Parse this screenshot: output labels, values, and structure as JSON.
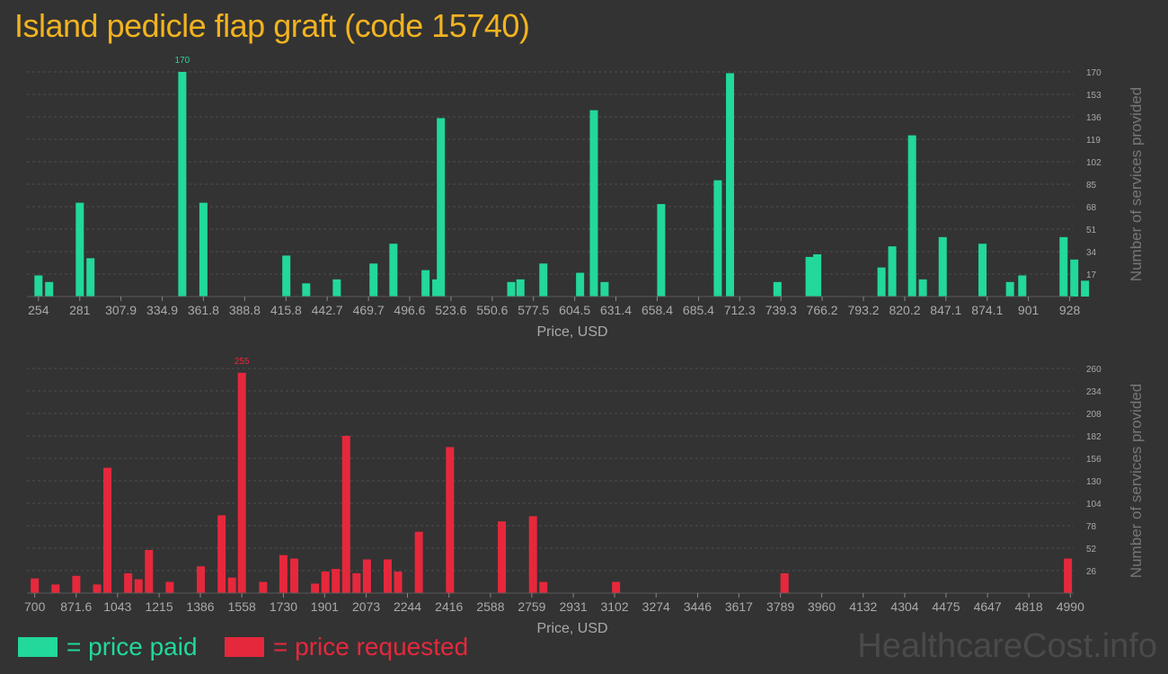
{
  "title": "Island pedicle flap graft (code 15740)",
  "colors": {
    "paid": "#22d89a",
    "requested": "#e6283c",
    "title": "#f2b320"
  },
  "legend": {
    "paid": "= price paid",
    "requested": "= price requested"
  },
  "watermark": "HealthcareCost.info",
  "chart_data": [
    {
      "type": "bar",
      "name": "paid",
      "xlabel": "Price, USD",
      "ylabel": "Number of services provided",
      "xlim": [
        250,
        930
      ],
      "ylim": [
        0,
        170
      ],
      "x_ticks": [
        "254",
        "281",
        "307.9",
        "334.9",
        "361.8",
        "388.8",
        "415.8",
        "442.7",
        "469.7",
        "496.6",
        "523.6",
        "550.6",
        "577.5",
        "604.5",
        "631.4",
        "658.4",
        "685.4",
        "712.3",
        "739.3",
        "766.2",
        "793.2",
        "820.2",
        "847.1",
        "874.1",
        "901",
        "928"
      ],
      "y_ticks": [
        "17",
        "34",
        "51",
        "68",
        "85",
        "102",
        "119",
        "136",
        "153",
        "170"
      ],
      "peak_label": "170",
      "x": [
        254,
        261,
        281,
        288,
        348,
        361.8,
        416,
        429,
        449,
        473,
        486,
        507,
        514,
        517,
        563,
        569,
        584,
        608,
        617,
        624,
        661,
        698,
        706,
        737,
        758,
        763,
        805,
        812,
        825,
        832,
        845,
        871,
        889,
        897,
        924,
        931,
        938
      ],
      "values": [
        16,
        11,
        71,
        29,
        170,
        71,
        31,
        10,
        13,
        25,
        40,
        20,
        13,
        135,
        11,
        13,
        25,
        18,
        141,
        11,
        70,
        88,
        169,
        11,
        30,
        32,
        22,
        38,
        122,
        13,
        45,
        40,
        11,
        16,
        45,
        28,
        12
      ]
    },
    {
      "type": "bar",
      "name": "requested",
      "xlabel": "Price, USD",
      "ylabel": "Number of services provided",
      "xlim": [
        690,
        5000
      ],
      "ylim": [
        0,
        260
      ],
      "x_ticks": [
        "700",
        "871.6",
        "1043",
        "1215",
        "1386",
        "1558",
        "1730",
        "1901",
        "2073",
        "2244",
        "2416",
        "2588",
        "2759",
        "2931",
        "3102",
        "3274",
        "3446",
        "3617",
        "3789",
        "3960",
        "4132",
        "4304",
        "4475",
        "4647",
        "4818",
        "4990"
      ],
      "y_ticks": [
        "26",
        "52",
        "78",
        "104",
        "130",
        "156",
        "182",
        "208",
        "234",
        "260"
      ],
      "peak_label": "255",
      "x": [
        700,
        786,
        872,
        958,
        1001,
        1087,
        1130,
        1173,
        1259,
        1388,
        1474,
        1517,
        1558,
        1646,
        1730,
        1775,
        1861,
        1904,
        1947,
        1990,
        2033,
        2076,
        2162,
        2205,
        2291,
        2420,
        2635,
        2764,
        2807,
        3108,
        3806,
        4980
      ],
      "values": [
        17,
        10,
        20,
        10,
        145,
        23,
        16,
        50,
        13,
        31,
        90,
        18,
        255,
        13,
        44,
        40,
        11,
        25,
        28,
        182,
        23,
        39,
        39,
        25,
        71,
        169,
        83,
        89,
        13,
        13,
        23,
        40
      ]
    }
  ]
}
